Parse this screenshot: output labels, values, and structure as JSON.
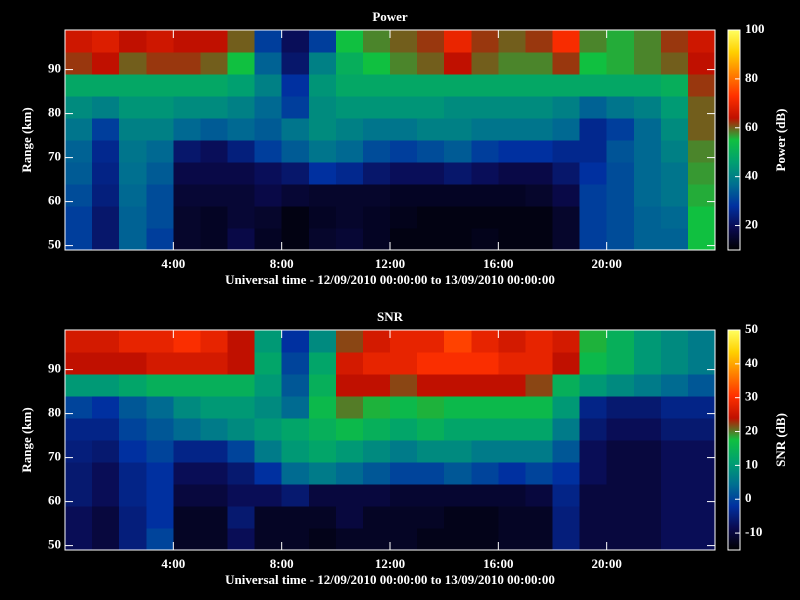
{
  "chart_data": [
    {
      "type": "heatmap",
      "title": "Power",
      "xlabel": "Universal time - 12/09/2010 00:00:00 to 13/09/2010 00:00:00",
      "ylabel": "Range (km)",
      "colorbar_label": "Power (dB)",
      "x": [
        0.5,
        1.5,
        2.5,
        3.5,
        4.5,
        5.5,
        6.5,
        7.5,
        8.5,
        9.5,
        10.5,
        11.5,
        12.5,
        13.5,
        14.5,
        15.5,
        16.5,
        17.5,
        18.5,
        19.5,
        20.5,
        21.5,
        22.5,
        23.5
      ],
      "y": [
        51.5,
        56.5,
        61.5,
        66.5,
        71.5,
        76.5,
        81.5,
        86.5,
        91.5,
        96.5
      ],
      "z": [
        [
          30,
          22,
          35,
          30,
          15,
          14,
          18,
          14,
          12,
          15,
          16,
          14,
          12,
          12,
          12,
          13,
          12,
          12,
          15,
          30,
          32,
          35,
          35,
          55
        ],
        [
          30,
          22,
          35,
          32,
          15,
          14,
          16,
          15,
          12,
          14,
          15,
          14,
          13,
          12,
          12,
          12,
          12,
          12,
          15,
          30,
          32,
          35,
          36,
          55
        ],
        [
          32,
          24,
          36,
          32,
          16,
          16,
          16,
          18,
          16,
          15,
          15,
          15,
          14,
          14,
          14,
          14,
          14,
          15,
          18,
          30,
          32,
          36,
          38,
          56
        ],
        [
          34,
          25,
          37,
          34,
          18,
          18,
          18,
          20,
          22,
          28,
          26,
          22,
          20,
          20,
          22,
          20,
          18,
          18,
          22,
          28,
          32,
          36,
          38,
          57
        ],
        [
          35,
          26,
          38,
          36,
          22,
          20,
          24,
          30,
          34,
          38,
          36,
          32,
          30,
          32,
          34,
          30,
          28,
          28,
          26,
          26,
          33,
          36,
          40,
          58
        ],
        [
          38,
          30,
          40,
          40,
          36,
          34,
          36,
          34,
          38,
          42,
          40,
          38,
          38,
          40,
          40,
          38,
          38,
          38,
          36,
          26,
          30,
          36,
          42,
          60
        ],
        [
          42,
          40,
          44,
          44,
          42,
          42,
          40,
          36,
          30,
          42,
          44,
          44,
          44,
          44,
          42,
          42,
          42,
          42,
          40,
          35,
          38,
          40,
          45,
          60
        ],
        [
          48,
          48,
          48,
          48,
          48,
          48,
          46,
          40,
          28,
          44,
          48,
          48,
          48,
          48,
          48,
          48,
          48,
          48,
          48,
          48,
          48,
          48,
          50,
          62
        ],
        [
          62,
          64,
          60,
          62,
          62,
          60,
          55,
          35,
          22,
          40,
          50,
          55,
          58,
          60,
          64,
          60,
          58,
          58,
          62,
          55,
          56,
          58,
          60,
          64
        ],
        [
          66,
          68,
          64,
          66,
          64,
          64,
          60,
          30,
          20,
          30,
          55,
          58,
          60,
          62,
          70,
          62,
          60,
          62,
          72,
          58,
          56,
          58,
          62,
          66
        ]
      ],
      "xlim": [
        0,
        24
      ],
      "ylim": [
        49,
        99
      ],
      "xticks": [
        {
          "value": 4,
          "label": "4:00"
        },
        {
          "value": 8,
          "label": "8:00"
        },
        {
          "value": 12,
          "label": "12:00"
        },
        {
          "value": 16,
          "label": "16:00"
        },
        {
          "value": 20,
          "label": "20:00"
        }
      ],
      "yticks": [
        50,
        60,
        70,
        80,
        90
      ],
      "zlim": [
        10,
        100
      ],
      "zticks": [
        20,
        40,
        60,
        80,
        100
      ],
      "colormap": [
        "#000000",
        "#0a0a50",
        "#0030a0",
        "#007090",
        "#00a070",
        "#10c040",
        "#c01000",
        "#ff3000",
        "#ff8000",
        "#ffd000",
        "#ffff60"
      ]
    },
    {
      "type": "heatmap",
      "title": "SNR",
      "xlabel": "Universal time - 12/09/2010 00:00:00 to 13/09/2010 00:00:00",
      "ylabel": "Range (km)",
      "colorbar_label": "SNR (dB)",
      "x": [
        0.5,
        1.5,
        2.5,
        3.5,
        4.5,
        5.5,
        6.5,
        7.5,
        8.5,
        9.5,
        10.5,
        11.5,
        12.5,
        13.5,
        14.5,
        15.5,
        16.5,
        17.5,
        18.5,
        19.5,
        20.5,
        21.5,
        22.5,
        23.5
      ],
      "y": [
        51.5,
        56.5,
        61.5,
        66.5,
        71.5,
        76.5,
        81.5,
        86.5,
        91.5,
        96.5
      ],
      "z": [
        [
          -8,
          -10,
          -5,
          0,
          -12,
          -12,
          -8,
          -12,
          -12,
          -13,
          -12,
          -12,
          -12,
          -13,
          -13,
          -13,
          -12,
          -12,
          -5,
          -10,
          -10,
          -10,
          -8,
          -8
        ],
        [
          -8,
          -10,
          -5,
          -2,
          -12,
          -12,
          -6,
          -12,
          -12,
          -12,
          -10,
          -12,
          -12,
          -12,
          -13,
          -13,
          -12,
          -12,
          -5,
          -10,
          -10,
          -10,
          -8,
          -8
        ],
        [
          -6,
          -8,
          -4,
          -2,
          -10,
          -10,
          -8,
          -8,
          -6,
          -10,
          -10,
          -10,
          -11,
          -11,
          -11,
          -11,
          -11,
          -10,
          -4,
          -10,
          -10,
          -10,
          -8,
          -8
        ],
        [
          -6,
          -8,
          -4,
          -2,
          -8,
          -8,
          -6,
          -2,
          4,
          6,
          4,
          2,
          0,
          0,
          2,
          0,
          -2,
          0,
          -2,
          -8,
          -10,
          -10,
          -8,
          -8
        ],
        [
          -5,
          -6,
          -2,
          0,
          -4,
          -4,
          0,
          6,
          10,
          12,
          10,
          8,
          6,
          8,
          8,
          6,
          6,
          6,
          2,
          -8,
          -10,
          -10,
          -8,
          -8
        ],
        [
          -4,
          -4,
          0,
          2,
          4,
          6,
          8,
          10,
          12,
          14,
          16,
          14,
          12,
          14,
          12,
          12,
          12,
          12,
          6,
          -6,
          -8,
          -8,
          -6,
          -6
        ],
        [
          0,
          -2,
          2,
          4,
          8,
          10,
          10,
          8,
          4,
          16,
          20,
          18,
          16,
          18,
          16,
          16,
          16,
          16,
          10,
          -4,
          -6,
          -6,
          -4,
          -4
        ],
        [
          10,
          10,
          12,
          14,
          14,
          14,
          14,
          10,
          2,
          14,
          24,
          24,
          22,
          24,
          24,
          24,
          24,
          22,
          14,
          10,
          8,
          6,
          4,
          2
        ],
        [
          24,
          24,
          24,
          26,
          26,
          26,
          24,
          12,
          0,
          12,
          26,
          28,
          28,
          30,
          30,
          30,
          28,
          28,
          24,
          16,
          14,
          10,
          8,
          6
        ],
        [
          26,
          26,
          28,
          28,
          30,
          28,
          24,
          10,
          -2,
          8,
          22,
          26,
          28,
          28,
          32,
          28,
          26,
          28,
          26,
          18,
          14,
          10,
          8,
          6
        ]
      ],
      "xlim": [
        0,
        24
      ],
      "ylim": [
        49,
        99
      ],
      "xticks": [
        {
          "value": 4,
          "label": "4:00"
        },
        {
          "value": 8,
          "label": "8:00"
        },
        {
          "value": 12,
          "label": "12:00"
        },
        {
          "value": 16,
          "label": "16:00"
        },
        {
          "value": 20,
          "label": "20:00"
        }
      ],
      "yticks": [
        50,
        60,
        70,
        80,
        90
      ],
      "zlim": [
        -15,
        50
      ],
      "zticks": [
        -10,
        0,
        10,
        20,
        30,
        40,
        50
      ],
      "colormap": [
        "#000000",
        "#0a0a50",
        "#0030a0",
        "#007090",
        "#00a070",
        "#10c040",
        "#c01000",
        "#ff3000",
        "#ff8000",
        "#ffd000",
        "#ffff60"
      ]
    }
  ]
}
